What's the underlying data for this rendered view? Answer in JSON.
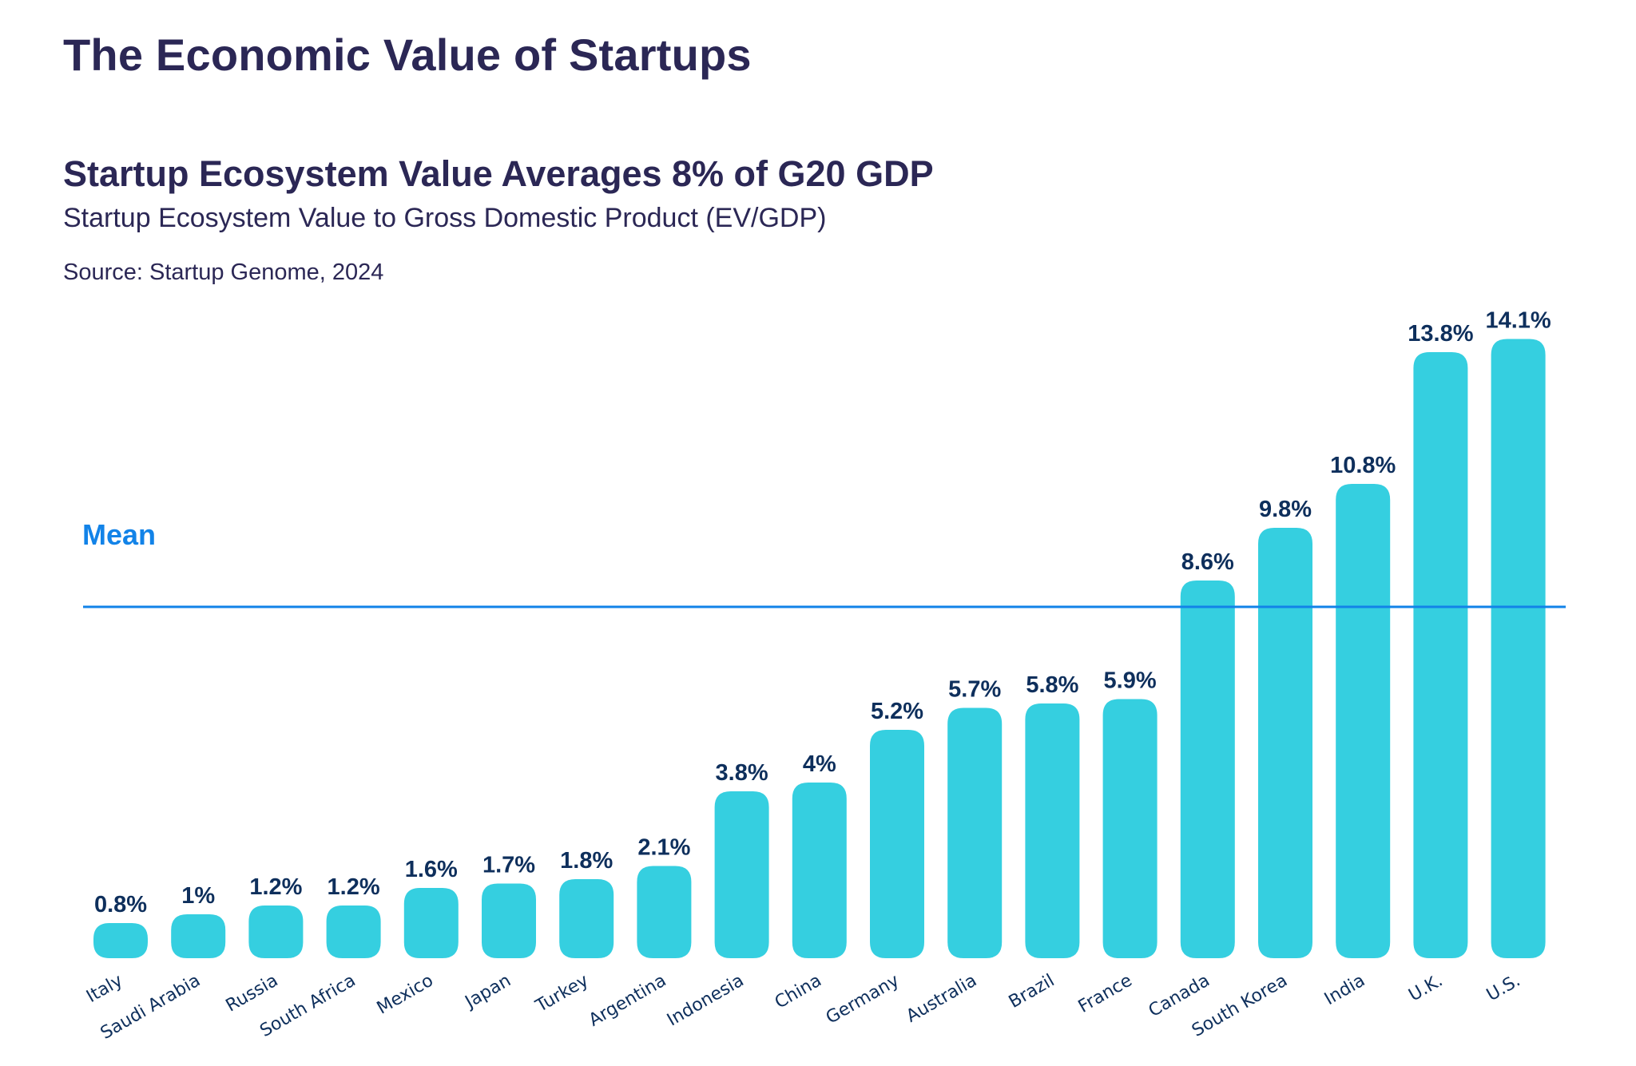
{
  "page": {
    "title": "The Economic Value of Startups"
  },
  "chart_data": {
    "type": "bar",
    "title": "Startup Ecosystem Value Averages 8% of G20 GDP",
    "subtitle": "Startup Ecosystem Value to Gross Domestic Product (EV/GDP)",
    "source": "Source: Startup Genome, 2024",
    "xlabel": "",
    "ylabel": "",
    "ylim": [
      0,
      14.1
    ],
    "grid": false,
    "legend": "none",
    "bar_color": "#35cfe0",
    "label_color": "#0e2f5c",
    "categories": [
      "Italy",
      "Saudi Arabia",
      "Russia",
      "South Africa",
      "Mexico",
      "Japan",
      "Turkey",
      "Argentina",
      "Indonesia",
      "China",
      "Germany",
      "Australia",
      "Brazil",
      "France",
      "Canada",
      "South Korea",
      "India",
      "U.K.",
      "U.S."
    ],
    "values": [
      0.8,
      1.0,
      1.2,
      1.2,
      1.6,
      1.7,
      1.8,
      2.1,
      3.8,
      4.0,
      5.2,
      5.7,
      5.8,
      5.9,
      8.6,
      9.8,
      10.8,
      13.8,
      14.1
    ],
    "data_labels": [
      "0.8%",
      "1%",
      "1.2%",
      "1.2%",
      "1.6%",
      "1.7%",
      "1.8%",
      "2.1%",
      "3.8%",
      "4%",
      "5.2%",
      "5.7%",
      "5.8%",
      "5.9%",
      "8.6%",
      "9.8%",
      "10.8%",
      "13.8%",
      "14.1%"
    ],
    "annotations": [
      {
        "type": "reference_line",
        "label": "Mean",
        "value": 8,
        "color": "#1283e8"
      }
    ]
  }
}
